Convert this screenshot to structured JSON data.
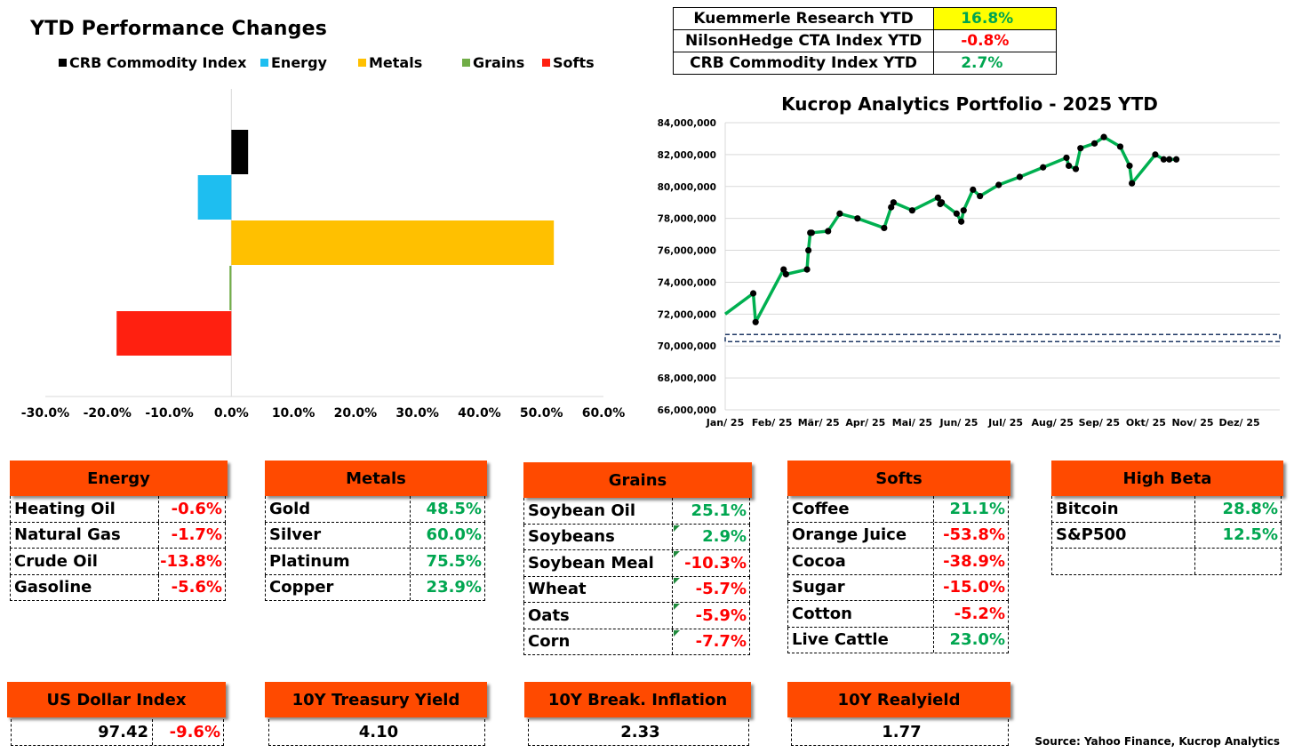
{
  "bar_chart": {
    "title": "YTD Performance Changes",
    "legend": [
      {
        "label": "CRB Commodity Index",
        "color": "#000000"
      },
      {
        "label": "Energy",
        "color": "#1ebef0"
      },
      {
        "label": "Metals",
        "color": "#ffc000"
      },
      {
        "label": "Grains",
        "color": "#70ad47"
      },
      {
        "label": "Softs",
        "color": "#ff2010"
      }
    ]
  },
  "ytd_summary": [
    {
      "name": "Kuemmerle Research YTD",
      "value": "16.8%",
      "style": "highlight"
    },
    {
      "name": "NilsonHedge CTA Index YTD",
      "value": "-0.8%",
      "style": "neg"
    },
    {
      "name": "CRB Commodity Index YTD",
      "value": "2.7%",
      "style": "pos"
    }
  ],
  "line_chart": {
    "title": "Kucrop Analytics Portfolio - 2025 YTD"
  },
  "chart_data": [
    {
      "type": "bar",
      "orientation": "horizontal",
      "title": "YTD Performance Changes",
      "categories": [
        "CRB Commodity Index",
        "Energy",
        "Metals",
        "Grains",
        "Softs"
      ],
      "values": [
        2.7,
        -5.4,
        52.0,
        -0.3,
        -18.5
      ],
      "colors": [
        "#000000",
        "#1ebef0",
        "#ffc000",
        "#70ad47",
        "#ff2010"
      ],
      "xlim": [
        -30,
        60
      ],
      "xticks": [
        "-30.0%",
        "-20.0%",
        "-10.0%",
        "0.0%",
        "10.0%",
        "20.0%",
        "30.0%",
        "40.0%",
        "50.0%",
        "60.0%"
      ],
      "legend_position": "top"
    },
    {
      "type": "line",
      "title": "Kucrop Analytics Portfolio - 2025 YTD",
      "x_labels": [
        "Jan/ 25",
        "Feb/ 25",
        "Mär/ 25",
        "Apr/ 25",
        "Mai/ 25",
        "Jun/ 25",
        "Jul/ 25",
        "Aug/ 25",
        "Sep/ 25",
        "Okt/ 25",
        "Nov/ 25",
        "Dez/ 25"
      ],
      "y_ticks": [
        "84,000,000",
        "82,000,000",
        "80,000,000",
        "78,000,000",
        "76,000,000",
        "74,000,000",
        "72,000,000",
        "70,000,000",
        "68,000,000",
        "66,000,000"
      ],
      "ylim": [
        66000000,
        84000000
      ],
      "x_months": [
        0,
        0.6,
        0.65,
        1.25,
        1.3,
        1.75,
        1.78,
        1.82,
        1.85,
        2.2,
        2.45,
        2.83,
        3.4,
        3.55,
        3.6,
        4.0,
        4.55,
        4.6,
        4.63,
        4.95,
        5.05,
        5.1,
        5.3,
        5.45,
        5.85,
        6.3,
        6.8,
        7.3,
        7.35,
        7.5,
        7.6,
        7.9,
        8.1,
        8.45,
        8.65,
        8.7,
        9.2,
        9.38,
        9.5,
        9.65
      ],
      "values": [
        72000000,
        73300000,
        71500000,
        74800000,
        74500000,
        74800000,
        76000000,
        77100000,
        77100000,
        77200000,
        78300000,
        78000000,
        77400000,
        78700000,
        79000000,
        78500000,
        79300000,
        78900000,
        79000000,
        78300000,
        77800000,
        78500000,
        79800000,
        79400000,
        80100000,
        80600000,
        81200000,
        81800000,
        81300000,
        81100000,
        82400000,
        82700000,
        83100000,
        82500000,
        81300000,
        80200000,
        82000000,
        81700000,
        81700000,
        81700000
      ],
      "baseline": 70500000,
      "series_color": "#00b050"
    }
  ],
  "groups": [
    {
      "title": "Energy",
      "rows": [
        {
          "name": "Heating Oil",
          "value": "-0.6%",
          "dir": "neg"
        },
        {
          "name": "Natural Gas",
          "value": "-1.7%",
          "dir": "neg"
        },
        {
          "name": "Crude Oil",
          "value": "-13.8%",
          "dir": "neg"
        },
        {
          "name": "Gasoline",
          "value": "-5.6%",
          "dir": "neg"
        }
      ]
    },
    {
      "title": "Metals",
      "rows": [
        {
          "name": "Gold",
          "value": "48.5%",
          "dir": "pos"
        },
        {
          "name": "Silver",
          "value": "60.0%",
          "dir": "pos"
        },
        {
          "name": "Platinum",
          "value": "75.5%",
          "dir": "pos"
        },
        {
          "name": "Copper",
          "value": "23.9%",
          "dir": "pos"
        }
      ]
    },
    {
      "title": "Grains",
      "rows": [
        {
          "name": "Soybean Oil",
          "value": "25.1%",
          "dir": "pos"
        },
        {
          "name": "Soybeans",
          "value": "2.9%",
          "dir": "pos"
        },
        {
          "name": "Soybean Meal",
          "value": "-10.3%",
          "dir": "neg"
        },
        {
          "name": "Wheat",
          "value": "-5.7%",
          "dir": "neg"
        },
        {
          "name": "Oats",
          "value": "-5.9%",
          "dir": "neg"
        },
        {
          "name": "Corn",
          "value": "-7.7%",
          "dir": "neg"
        }
      ]
    },
    {
      "title": "Softs",
      "rows": [
        {
          "name": "Coffee",
          "value": "21.1%",
          "dir": "pos"
        },
        {
          "name": "Orange Juice",
          "value": "-53.8%",
          "dir": "neg"
        },
        {
          "name": "Cocoa",
          "value": "-38.9%",
          "dir": "neg"
        },
        {
          "name": "Sugar",
          "value": "-15.0%",
          "dir": "neg"
        },
        {
          "name": "Cotton",
          "value": "-5.2%",
          "dir": "neg"
        },
        {
          "name": "Live Cattle",
          "value": "23.0%",
          "dir": "pos"
        }
      ]
    },
    {
      "title": "High Beta",
      "rows": [
        {
          "name": "Bitcoin",
          "value": "28.8%",
          "dir": "pos"
        },
        {
          "name": "S&P500",
          "value": "12.5%",
          "dir": "pos"
        },
        {
          "name": "",
          "value": "",
          "dir": "pos"
        }
      ]
    }
  ],
  "indicators": [
    {
      "title": "US Dollar Index",
      "value": "97.42",
      "change": "-9.6%"
    },
    {
      "title": "10Y Treasury Yield",
      "value": "4.10"
    },
    {
      "title": "10Y Break. Inflation",
      "value": "2.33"
    },
    {
      "title": "10Y Realyield",
      "value": "1.77"
    }
  ],
  "source": "Source: Yahoo Finance, Kucrop Analytics"
}
